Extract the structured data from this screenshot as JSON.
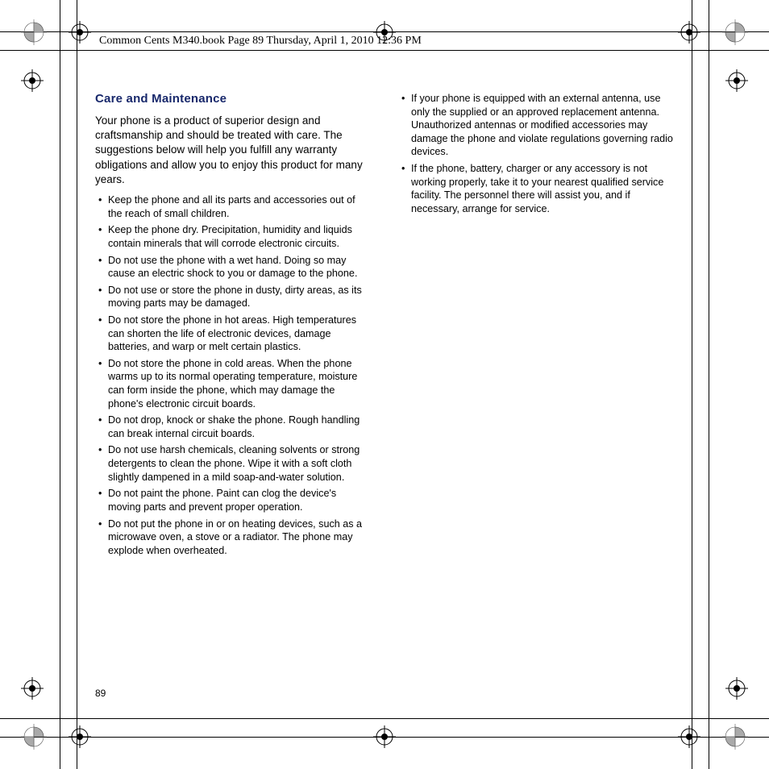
{
  "header": {
    "text": "Common Cents M340.book  Page 89  Thursday, April 1, 2010  12:36 PM"
  },
  "page_number": "89",
  "heading": "Care and Maintenance",
  "intro": "Your phone is a product of superior design and craftsmanship and should be treated with care. The suggestions below will help you fulfill any warranty obligations and allow you to enjoy this product for many years.",
  "col1_items": [
    "Keep the phone and all its parts and accessories out of the reach of small children.",
    "Keep the phone dry. Precipitation, humidity and liquids contain minerals that will corrode electronic circuits.",
    "Do not use the phone with a wet hand. Doing so may cause an electric shock to you or damage to the phone.",
    "Do not use or store the phone in dusty, dirty areas, as its moving parts may be damaged.",
    "Do not store the phone in hot areas. High temperatures can shorten the life of electronic devices, damage batteries, and warp or melt certain plastics.",
    "Do not store the phone in cold areas. When the phone warms up to its normal operating temperature, moisture can form inside the phone, which may damage the phone's electronic circuit boards.",
    "Do not drop, knock or shake the phone. Rough handling can break internal circuit boards.",
    "Do not use harsh chemicals, cleaning solvents or strong detergents to clean the phone. Wipe it with a soft cloth slightly dampened in a mild soap-and-water solution.",
    "Do not paint the phone. Paint can clog the device's moving parts and prevent proper operation.",
    "Do not put the phone in or on heating devices, such as a microwave oven, a stove or a radiator. The phone may explode when overheated."
  ],
  "col2_items": [
    "If your phone is equipped with an external antenna, use only the supplied or an approved replacement antenna. Unauthorized antennas or modified accessories may damage the phone and violate regulations governing radio devices.",
    "If the phone, battery, charger or any accessory is not working properly, take it to your nearest qualified service facility. The personnel there will assist you, and if necessary, arrange for service."
  ],
  "colors": {
    "heading": "#18286b",
    "text": "#000000",
    "background": "#ffffff"
  }
}
